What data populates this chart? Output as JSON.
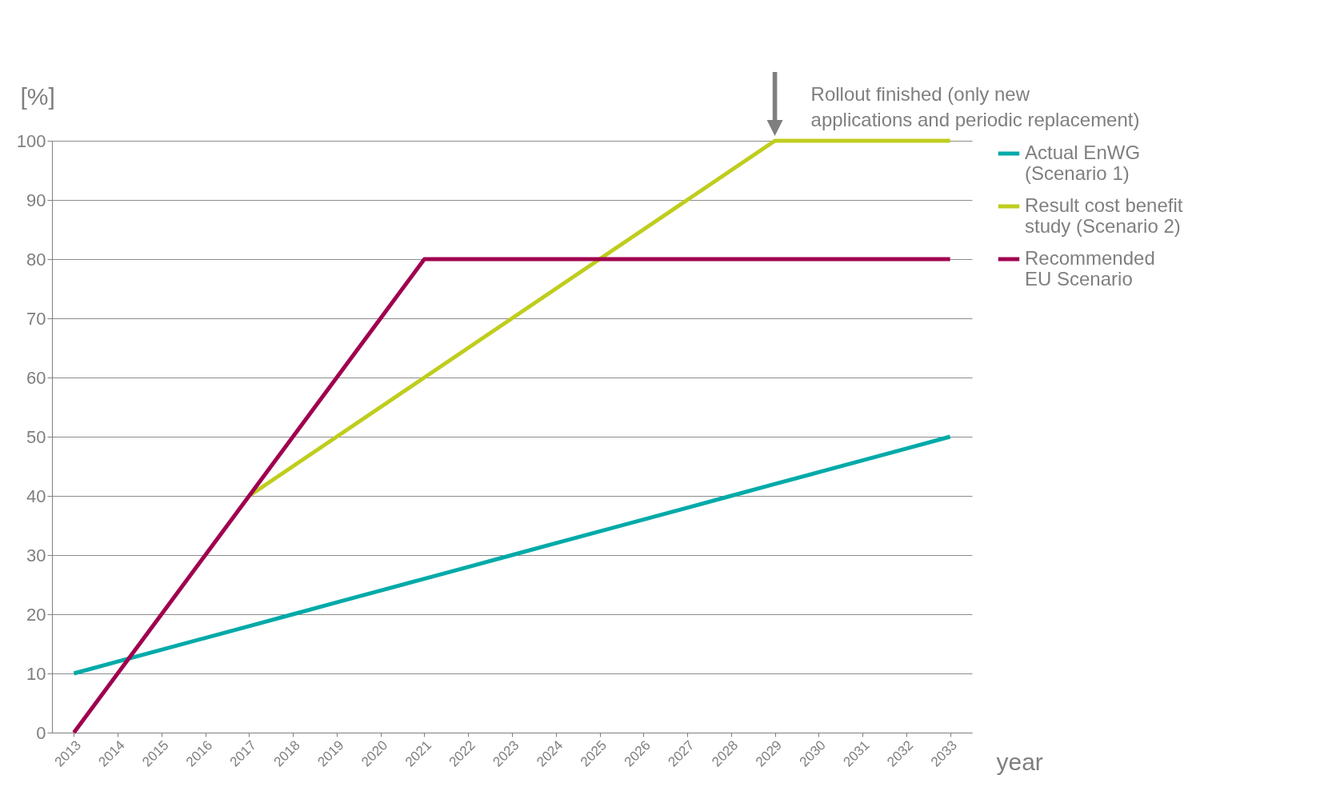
{
  "chart_data": {
    "type": "line",
    "xlabel": "year",
    "ylabel": "[%]",
    "categories": [
      "2013",
      "2014",
      "2015",
      "2016",
      "2017",
      "2018",
      "2019",
      "2020",
      "2021",
      "2022",
      "2023",
      "2024",
      "2025",
      "2026",
      "2027",
      "2028",
      "2029",
      "2030",
      "2031",
      "2032",
      "2033"
    ],
    "series": [
      {
        "name": "Actual EnWG (Scenario 1)",
        "color": "#00aaa8",
        "values": [
          10,
          12,
          14,
          16,
          18,
          20,
          22,
          24,
          26,
          28,
          30,
          32,
          34,
          36,
          38,
          40,
          42,
          44,
          46,
          48,
          50
        ]
      },
      {
        "name": "Result cost benefit study (Scenario 2)",
        "color": "#bfcd1e",
        "values": [
          null,
          null,
          null,
          null,
          40,
          45,
          50,
          55,
          60,
          65,
          70,
          75,
          80,
          85,
          90,
          95,
          100,
          100,
          100,
          100,
          100
        ]
      },
      {
        "name": "Recommended EU Scenario",
        "color": "#a0004f",
        "values": [
          0,
          10,
          20,
          30,
          40,
          50,
          60,
          70,
          80,
          80,
          80,
          80,
          80,
          80,
          80,
          80,
          80,
          80,
          80,
          80,
          80
        ]
      }
    ],
    "ylim": [
      0,
      100
    ],
    "yticks": [
      0,
      10,
      20,
      30,
      40,
      50,
      60,
      70,
      80,
      90,
      100
    ],
    "grid": "y",
    "legend": "right",
    "marker": "none",
    "line_style": "solid",
    "annotations": [
      {
        "text": "Rollout finished (only new applications and periodic replacement)",
        "x": "2029",
        "y": 100
      }
    ]
  }
}
